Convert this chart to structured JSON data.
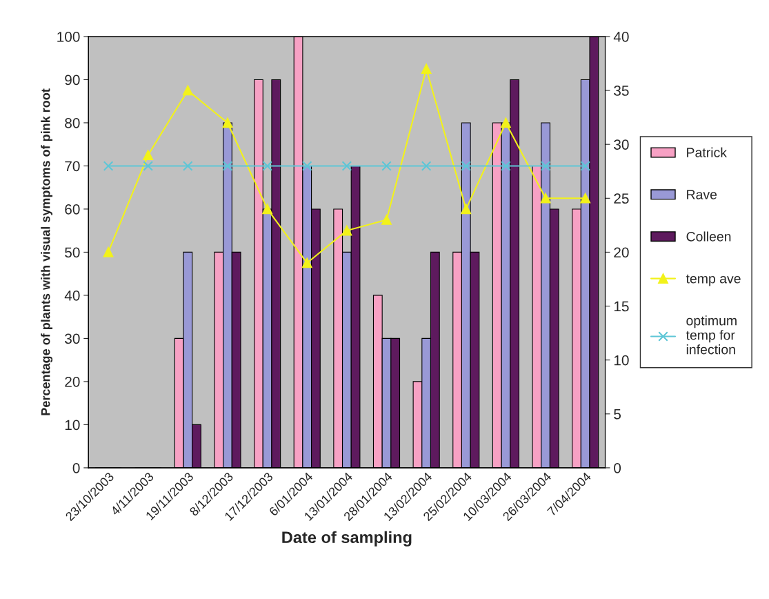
{
  "chart_data": {
    "type": "bar",
    "xlabel": "Date of sampling",
    "ylabel": "Percentage of plants with visual symptoms of pink root",
    "categories": [
      "23/10/2003",
      "4/11/2003",
      "19/11/2003",
      "8/12/2003",
      "17/12/2003",
      "6/01/2004",
      "13/01/2004",
      "28/01/2004",
      "13/02/2004",
      "25/02/2004",
      "10/03/2004",
      "26/03/2004",
      "7/04/2004"
    ],
    "series": [
      {
        "name": "Patrick",
        "color": "#f7a1c4",
        "values": [
          0,
          0,
          30,
          50,
          90,
          100,
          60,
          40,
          20,
          50,
          80,
          70,
          60
        ]
      },
      {
        "name": "Rave",
        "color": "#9999d6",
        "values": [
          0,
          0,
          50,
          80,
          60,
          70,
          50,
          30,
          30,
          80,
          80,
          80,
          90
        ]
      },
      {
        "name": "Colleen",
        "color": "#5e1a5e",
        "values": [
          0,
          0,
          10,
          50,
          90,
          60,
          70,
          30,
          50,
          50,
          90,
          60,
          100
        ]
      },
      {
        "name": "temp ave",
        "type": "line",
        "axis": "y2",
        "color": "#f2f21a",
        "marker": "triangle",
        "values": [
          20,
          29,
          35,
          32,
          24,
          19,
          22,
          23,
          37,
          24,
          32,
          25,
          25
        ]
      },
      {
        "name": "optimum temp for infection",
        "type": "line",
        "axis": "y2",
        "color": "#5ec6d6",
        "marker": "cross",
        "values": [
          28,
          28,
          28,
          28,
          28,
          28,
          28,
          28,
          28,
          28,
          28,
          28,
          28
        ]
      }
    ],
    "ylim": [
      0,
      100
    ],
    "yticks": [
      0,
      10,
      20,
      30,
      40,
      50,
      60,
      70,
      80,
      90,
      100
    ],
    "y2lim": [
      0,
      40
    ],
    "y2ticks": [
      0,
      5,
      10,
      15,
      20,
      25,
      30,
      35,
      40
    ],
    "grid": false,
    "legend": "right"
  }
}
